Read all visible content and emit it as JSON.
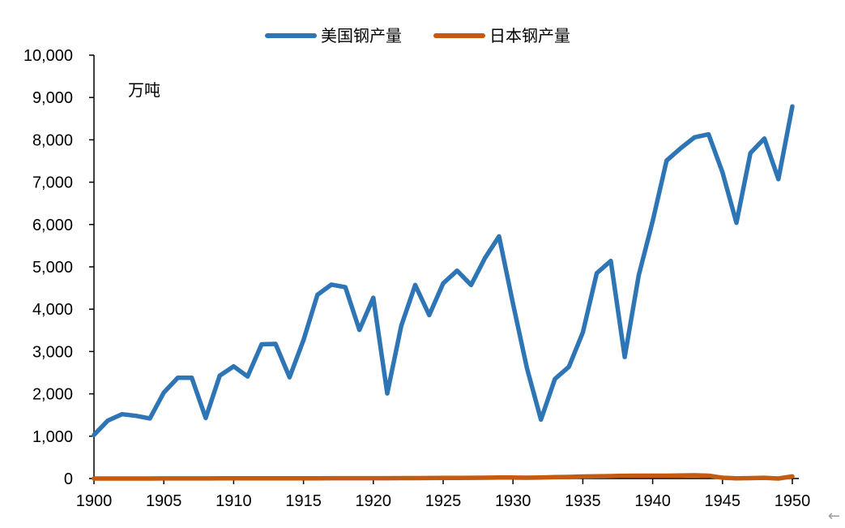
{
  "chart_data": {
    "type": "line",
    "unit_label": "万吨",
    "x": [
      1900,
      1901,
      1902,
      1903,
      1904,
      1905,
      1906,
      1907,
      1908,
      1909,
      1910,
      1911,
      1912,
      1913,
      1914,
      1915,
      1916,
      1917,
      1918,
      1919,
      1920,
      1921,
      1922,
      1923,
      1924,
      1925,
      1926,
      1927,
      1928,
      1929,
      1930,
      1931,
      1932,
      1933,
      1934,
      1935,
      1936,
      1937,
      1938,
      1939,
      1940,
      1941,
      1942,
      1943,
      1944,
      1945,
      1946,
      1947,
      1948,
      1949,
      1950
    ],
    "x_ticks": [
      "1900",
      "1905",
      "1910",
      "1915",
      "1920",
      "1925",
      "1930",
      "1935",
      "1940",
      "1945",
      "1950"
    ],
    "y_ticks": [
      "0",
      "1,000",
      "2,000",
      "3,000",
      "4,000",
      "5,000",
      "6,000",
      "7,000",
      "8,000",
      "9,000",
      "10,000"
    ],
    "ylim": [
      0,
      10000
    ],
    "xlim": [
      1900,
      1950
    ],
    "legend_position": "top-center",
    "grid": false,
    "series": [
      {
        "name": "美国钢产量",
        "color": "#2E75B6",
        "values": [
          1030,
          1370,
          1520,
          1480,
          1420,
          2030,
          2380,
          2380,
          1430,
          2430,
          2650,
          2410,
          3170,
          3180,
          2390,
          3270,
          4340,
          4580,
          4520,
          3510,
          4270,
          2010,
          3610,
          4570,
          3860,
          4610,
          4910,
          4570,
          5210,
          5720,
          4130,
          2610,
          1390,
          2350,
          2640,
          3450,
          4850,
          5140,
          2870,
          4800,
          6080,
          7510,
          7800,
          8060,
          8130,
          7230,
          6040,
          7690,
          8030,
          7070,
          8790
        ]
      },
      {
        "name": "日本钢产量",
        "color": "#C55A11",
        "values": [
          0,
          0,
          0,
          0,
          0,
          1,
          1,
          2,
          2,
          3,
          3,
          3,
          3,
          4,
          4,
          5,
          5,
          7,
          8,
          8,
          8,
          8,
          9,
          9,
          11,
          13,
          15,
          17,
          19,
          23,
          23,
          19,
          24,
          32,
          38,
          47,
          52,
          58,
          65,
          67,
          68,
          68,
          70,
          77,
          67,
          20,
          6,
          9,
          17,
          0,
          49
        ]
      }
    ]
  }
}
